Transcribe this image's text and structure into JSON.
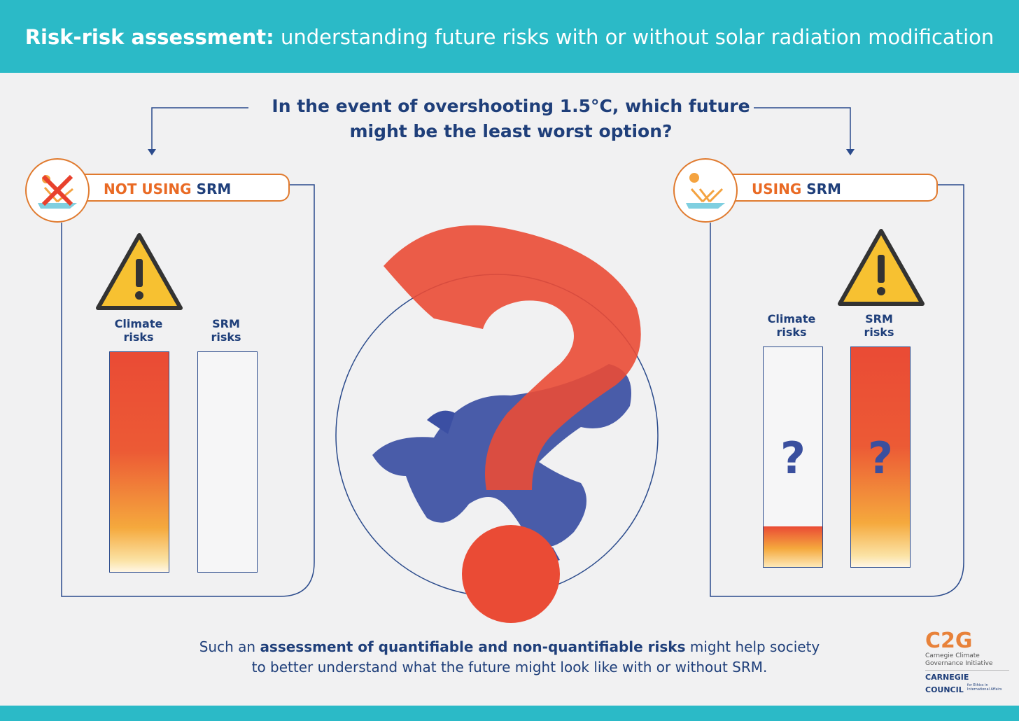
{
  "header": {
    "title_bold": "Risk-risk assessment:",
    "title_rest": " understanding future risks with or without solar radiation modification"
  },
  "question": {
    "line1": "In the event of overshooting 1.5°C, which future",
    "line2": "might be the least worst option?"
  },
  "left_panel": {
    "tab_orange": "NOT USING ",
    "tab_blue": "SRM",
    "bar1_label_line1": "Climate",
    "bar1_label_line2": "risks",
    "bar2_label_line1": "SRM",
    "bar2_label_line2": "risks",
    "icon": "sun-reflection-crossed-icon"
  },
  "right_panel": {
    "tab_orange": "USING ",
    "tab_blue": "SRM",
    "bar1_label_line1": "Climate",
    "bar1_label_line2": "risks",
    "bar2_label_line1": "SRM",
    "bar2_label_line2": "risks",
    "bar1_symbol": "?",
    "bar2_symbol": "?",
    "icon": "sun-reflection-icon"
  },
  "bottom": {
    "text_pre": "Such an ",
    "text_bold": "assessment of quantifiable and non-quantifiable risks",
    "text_post": " might help society",
    "line2": "to better understand what the future might look like with or without SRM."
  },
  "logos": {
    "c2g_mark": "C2G",
    "c2g_line1": "Carnegie Climate",
    "c2g_line2": "Governance Initiative",
    "cc_line1": "CARNEGIE",
    "cc_line2": "COUNCIL",
    "cc_small1": "for Ethics in",
    "cc_small2": "International Affairs"
  },
  "colors": {
    "header": "#2bbac7",
    "navy": "#1f3f7a",
    "orange": "#e96a24",
    "red": "#ea4b35",
    "yellow": "#f7c948"
  }
}
